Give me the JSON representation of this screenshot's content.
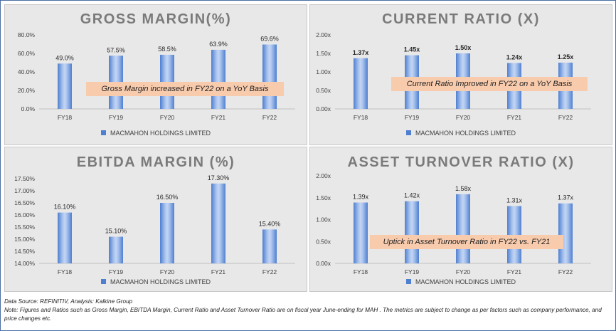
{
  "chart_data": [
    {
      "type": "bar",
      "title": "GROSS MARGIN(%)",
      "categories": [
        "FY18",
        "FY19",
        "FY20",
        "FY21",
        "FY22"
      ],
      "series": [
        {
          "name": "MACMAHON HOLDINGS LIMITED",
          "values": [
            49.0,
            57.5,
            58.5,
            63.9,
            69.6
          ]
        }
      ],
      "data_labels": [
        "49.0%",
        "57.5%",
        "58.5%",
        "63.9%",
        "69.6%"
      ],
      "yticks": [
        "0.0%",
        "20.0%",
        "40.0%",
        "60.0%",
        "80.0%"
      ],
      "ylim": [
        0,
        80
      ],
      "annotation": "Gross Margin increased in FY22 on a YoY Basis",
      "legend": "bottom",
      "label_bold": false
    },
    {
      "type": "bar",
      "title": "CURRENT RATIO (X)",
      "categories": [
        "FY18",
        "FY19",
        "FY20",
        "FY21",
        "FY22"
      ],
      "series": [
        {
          "name": "MACMAHON HOLDINGS LIMITED",
          "values": [
            1.37,
            1.45,
            1.5,
            1.24,
            1.25
          ]
        }
      ],
      "data_labels": [
        "1.37x",
        "1.45x",
        "1.50x",
        "1.24x",
        "1.25x"
      ],
      "yticks": [
        "0.00x",
        "0.50x",
        "1.00x",
        "1.50x",
        "2.00x"
      ],
      "ylim": [
        0,
        2
      ],
      "annotation": "Current Ratio Improved in FY22 on a YoY Basis",
      "legend": "bottom",
      "label_bold": true
    },
    {
      "type": "bar",
      "title": "EBITDA MARGIN (%)",
      "categories": [
        "FY18",
        "FY19",
        "FY20",
        "FY21",
        "FY22"
      ],
      "series": [
        {
          "name": "MACMAHON HOLDINGS LIMITED",
          "values": [
            16.1,
            15.1,
            16.5,
            17.3,
            15.4
          ]
        }
      ],
      "data_labels": [
        "16.10%",
        "15.10%",
        "16.50%",
        "17.30%",
        "15.40%"
      ],
      "yticks": [
        "14.00%",
        "14.50%",
        "15.00%",
        "15.50%",
        "16.00%",
        "16.50%",
        "17.00%",
        "17.50%"
      ],
      "ylim": [
        14,
        17.5
      ],
      "annotation": "",
      "legend": "bottom",
      "label_bold": false
    },
    {
      "type": "bar",
      "title": "ASSET TURNOVER RATIO (X)",
      "categories": [
        "FY18",
        "FY19",
        "FY20",
        "FY21",
        "FY22"
      ],
      "series": [
        {
          "name": "MACMAHON HOLDINGS LIMITED",
          "values": [
            1.39,
            1.42,
            1.58,
            1.31,
            1.37
          ]
        }
      ],
      "data_labels": [
        "1.39x",
        "1.42x",
        "1.58x",
        "1.31x",
        "1.37x"
      ],
      "yticks": [
        "0.00x",
        "0.50x",
        "1.00x",
        "1.50x",
        "2.00x"
      ],
      "ylim": [
        0,
        2
      ],
      "annotation": "Uptick in Asset Turnover Ratio in FY22 vs. FY21",
      "legend": "bottom",
      "label_bold": false
    }
  ],
  "footer": {
    "source": "Data Source: REFINITIV, Analysis: Kalkine Group",
    "note": "Note: Figures and Ratios such as Gross Margin, EBITDA Margin, Current Ratio and Asset Turnover Ratio are on fiscal year June-ending for MAH . The metrics are subject to change as per factors such as company performance, and price changes etc."
  },
  "colors": {
    "bar": "#4f7fd0",
    "bar_light": "#9fbcea",
    "panel_bg": "#e8e8e8",
    "callout": "#f8cbad",
    "title": "#7a7a7a"
  }
}
